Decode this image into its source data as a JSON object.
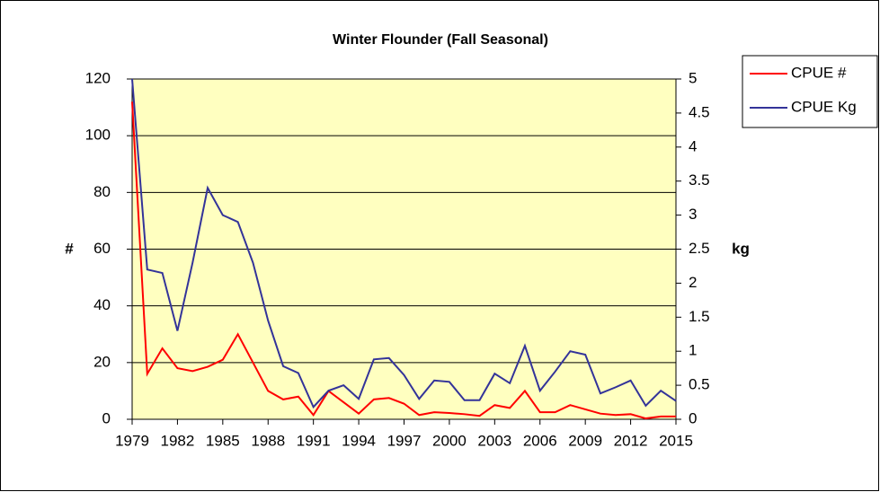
{
  "chart_data": {
    "type": "line",
    "title": "Winter Flounder (Fall Seasonal)",
    "y_label": "#",
    "y2_label": "kg",
    "x": [
      1979,
      1980,
      1981,
      1982,
      1983,
      1984,
      1985,
      1986,
      1987,
      1988,
      1989,
      1990,
      1991,
      1992,
      1993,
      1994,
      1995,
      1996,
      1997,
      1998,
      1999,
      2000,
      2001,
      2002,
      2003,
      2004,
      2005,
      2006,
      2007,
      2008,
      2009,
      2010,
      2011,
      2012,
      2013,
      2014,
      2015
    ],
    "xlim": [
      1979,
      2015
    ],
    "xticks": [
      1979,
      1982,
      1985,
      1988,
      1991,
      1994,
      1997,
      2000,
      2003,
      2006,
      2009,
      2012,
      2015
    ],
    "ylim": [
      0,
      120
    ],
    "yticks": [
      0,
      20,
      40,
      60,
      80,
      100,
      120
    ],
    "y2lim": [
      0,
      5
    ],
    "y2ticks": [
      0,
      0.5,
      1,
      1.5,
      2,
      2.5,
      3,
      3.5,
      4,
      4.5,
      5
    ],
    "grid": true,
    "legend": "right",
    "background": "#ffffc0",
    "series": [
      {
        "name": "CPUE #",
        "color": "#ff0000",
        "axis": "y",
        "values": [
          112,
          16,
          25,
          18,
          17,
          18.5,
          21,
          30,
          20,
          10,
          7,
          8,
          1.5,
          10,
          6,
          2,
          7,
          7.5,
          5.5,
          1.5,
          2.5,
          2.2,
          1.8,
          1.2,
          5,
          4,
          10,
          2.5,
          2.5,
          5,
          3.5,
          2,
          1.5,
          1.8,
          0.3,
          1,
          1
        ]
      },
      {
        "name": "CPUE Kg",
        "color": "#333399",
        "axis": "y2",
        "values": [
          5,
          2.2,
          2.15,
          1.3,
          2.3,
          3.4,
          3.0,
          2.9,
          2.3,
          1.45,
          0.78,
          0.68,
          0.18,
          0.42,
          0.5,
          0.3,
          0.88,
          0.9,
          0.65,
          0.3,
          0.57,
          0.55,
          0.28,
          0.28,
          0.67,
          0.53,
          1.08,
          0.42,
          0.7,
          1.0,
          0.95,
          0.38,
          0.47,
          0.57,
          0.2,
          0.42,
          0.27
        ]
      }
    ]
  }
}
